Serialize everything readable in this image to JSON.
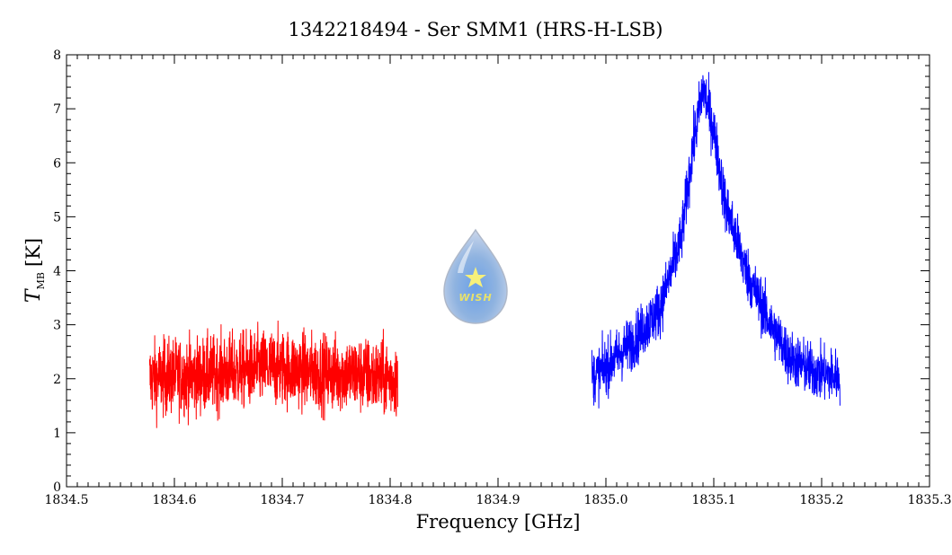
{
  "chart_data": {
    "type": "line",
    "title": "1342218494 - Ser SMM1 (HRS-H-LSB)",
    "xlabel": "Frequency [GHz]",
    "ylabel": {
      "symbol": "T",
      "subscript": "MB",
      "unit": "[K]"
    },
    "xlim": [
      1834.5,
      1835.3
    ],
    "ylim": [
      0,
      8
    ],
    "xticks": [
      "1834.5",
      "1834.6",
      "1834.7",
      "1834.8",
      "1834.9",
      "1835.0",
      "1835.1",
      "1835.2",
      "1835.3"
    ],
    "yticks": [
      "0",
      "1",
      "2",
      "3",
      "4",
      "5",
      "6",
      "7",
      "8"
    ],
    "grid": false,
    "series": [
      {
        "color": "#ff0000",
        "x_range": [
          1834.577,
          1834.807
        ],
        "x": [
          1834.58,
          1834.6,
          1834.62,
          1834.64,
          1834.66,
          1834.68,
          1834.7,
          1834.72,
          1834.74,
          1834.76,
          1834.78,
          1834.8
        ],
        "y": [
          2.0,
          2.05,
          2.05,
          2.1,
          2.15,
          2.2,
          2.2,
          2.15,
          2.1,
          2.1,
          2.05,
          2.0
        ],
        "noise": 0.35
      },
      {
        "color": "#0000ff",
        "x_range": [
          1834.987,
          1835.217
        ],
        "x": [
          1834.99,
          1835.01,
          1835.03,
          1835.05,
          1835.07,
          1835.08,
          1835.09,
          1835.1,
          1835.11,
          1835.13,
          1835.15,
          1835.17,
          1835.19,
          1835.21
        ],
        "y": [
          2.05,
          2.4,
          2.8,
          3.3,
          4.6,
          6.2,
          7.4,
          6.6,
          5.3,
          4.0,
          3.1,
          2.4,
          2.15,
          2.05
        ],
        "noise": 0.25
      }
    ]
  },
  "logo": {
    "text": "WISH",
    "icon": "water-drop-star-icon"
  }
}
